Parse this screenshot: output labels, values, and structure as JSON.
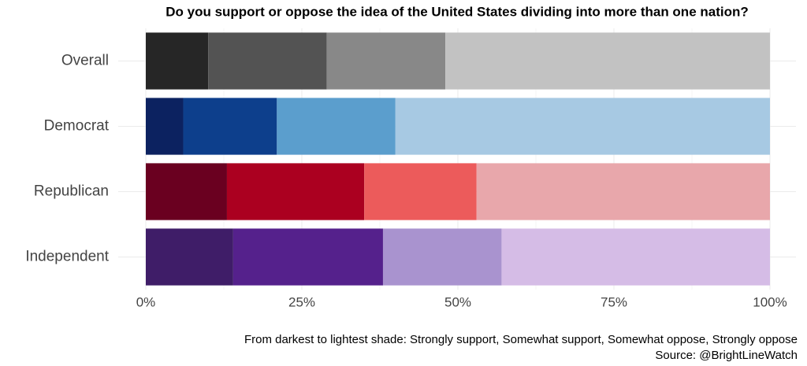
{
  "chart_data": {
    "type": "stacked-bar-horizontal",
    "title": "Do you support or oppose the idea of the United States dividing into more than one nation?",
    "categories": [
      "Overall",
      "Democrat",
      "Republican",
      "Independent"
    ],
    "series": [
      {
        "values": [
          10,
          6,
          13,
          14
        ],
        "colors": [
          "#262626",
          "#0c2260",
          "#6a0020",
          "#3f1d68"
        ]
      },
      {
        "values": [
          19,
          15,
          22,
          24
        ],
        "colors": [
          "#535353",
          "#0d3f8c",
          "#ab0020",
          "#55218c"
        ]
      },
      {
        "values": [
          19,
          19,
          18,
          19
        ],
        "colors": [
          "#888888",
          "#5b9ecd",
          "#ec5b5b",
          "#a993cf"
        ]
      },
      {
        "values": [
          52,
          60,
          47,
          43
        ],
        "colors": [
          "#c2c2c2",
          "#a7c9e3",
          "#e8a7ab",
          "#d5bce6"
        ]
      }
    ],
    "xlim": [
      0,
      100
    ],
    "xticks": [
      {
        "value": 0,
        "label": "0%"
      },
      {
        "value": 25,
        "label": "25%"
      },
      {
        "value": 50,
        "label": "50%"
      },
      {
        "value": 75,
        "label": "75%"
      },
      {
        "value": 100,
        "label": "100%"
      }
    ],
    "grid": true,
    "caption": [
      "From darkest to lightest shade: Strongly support, Somewhat support, Somewhat oppose, Strongly oppose",
      "Source: @BrightLineWatch"
    ]
  }
}
